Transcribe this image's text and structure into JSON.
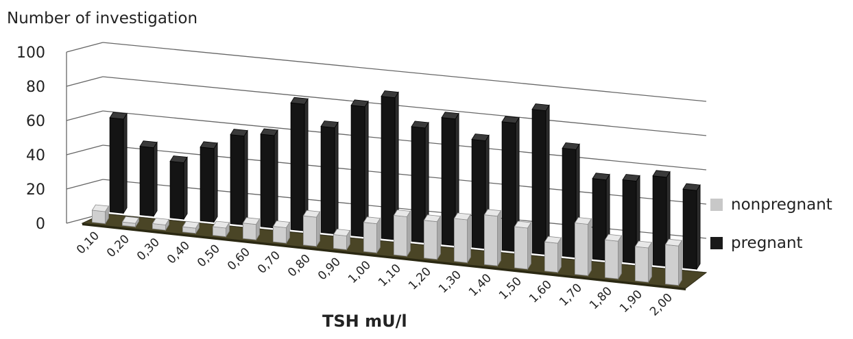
{
  "chart_data": {
    "type": "bar",
    "title": "",
    "ylabel": "Number of investigation",
    "xlabel": "TSH mU/l",
    "ylim": [
      0,
      100
    ],
    "yticks": [
      0,
      20,
      40,
      60,
      80,
      100
    ],
    "grid": true,
    "legend_position": "right",
    "categories": [
      "0,10",
      "0,20",
      "0,30",
      "0,40",
      "0,50",
      "0,60",
      "0,70",
      "0,80",
      "0,90",
      "1,00",
      "1,10",
      "1,20",
      "1,30",
      "1,40",
      "1,50",
      "1,60",
      "1,70",
      "1,80",
      "1,90",
      "2,00"
    ],
    "series": [
      {
        "name": "nonpregnant",
        "color": "#c8c8c8",
        "values": [
          7,
          2,
          3,
          3,
          5,
          9,
          9,
          17,
          8,
          17,
          23,
          22,
          25,
          29,
          24,
          17,
          30,
          22,
          20,
          23
        ]
      },
      {
        "name": "pregnant",
        "color": "#1a1a1a",
        "values": [
          55,
          40,
          33,
          43,
          52,
          54,
          74,
          62,
          76,
          83,
          67,
          74,
          63,
          75,
          84,
          63,
          47,
          48,
          52,
          46
        ]
      }
    ]
  }
}
